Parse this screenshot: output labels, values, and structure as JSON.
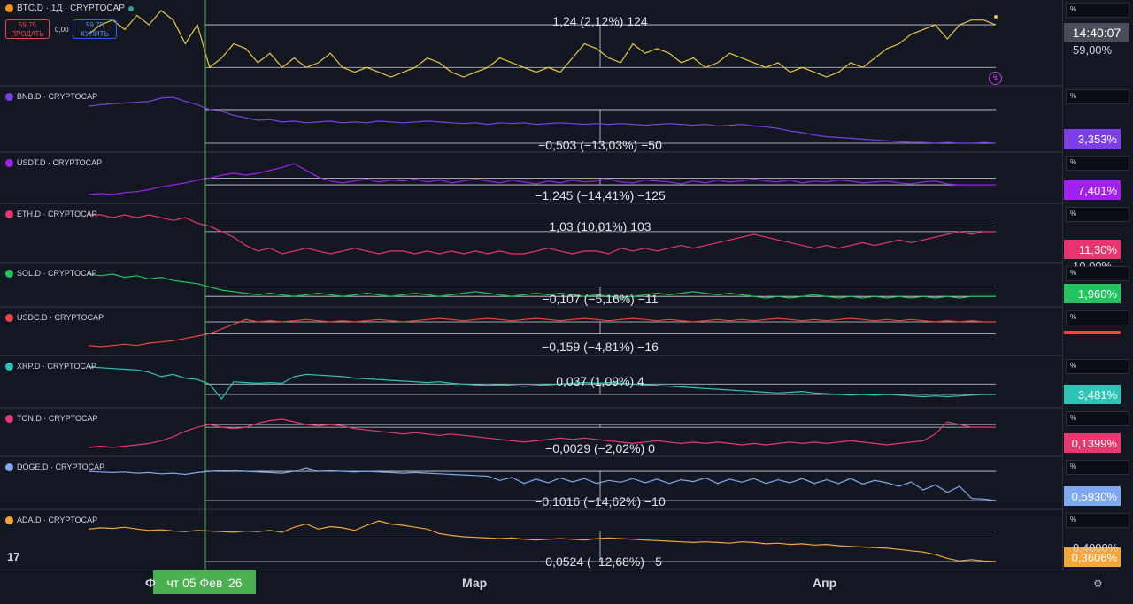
{
  "header": {
    "symbol": "BTC.D · 1Д · CRYPTOCAP",
    "sell_price": "59,75",
    "sell_label": "ПРОДАТЬ",
    "spread": "0,00",
    "buy_price": "59,75",
    "buy_label": "КУПИТЬ"
  },
  "cursor_date": "чт 05 Фев '26",
  "x_axis_labels": [
    "Ф",
    "Мар",
    "Апр"
  ],
  "time": "14:40:07",
  "pct_label": "%",
  "colors": {
    "bg": "#131722",
    "grid": "#2a2e39",
    "cursor": "#4caf50"
  },
  "chart_data": [
    {
      "type": "line",
      "symbol": "BTC.D · 1Д · CRYPTOCAP",
      "icon": "bitcoin-icon",
      "color": "#e8c547",
      "measure": "1,24 (2,12%) 124",
      "last_value": "59,00%",
      "values": [
        58.8,
        59.0,
        59.1,
        58.9,
        59.2,
        59.0,
        59.3,
        59.1,
        58.6,
        59.0,
        58.1,
        58.3,
        58.6,
        58.5,
        58.2,
        58.4,
        58.1,
        58.3,
        58.1,
        58.2,
        58.4,
        58.1,
        58.0,
        58.1,
        58.0,
        57.9,
        58.0,
        58.1,
        58.3,
        58.2,
        58.0,
        57.9,
        58.0,
        58.1,
        58.3,
        58.2,
        58.1,
        58.0,
        58.1,
        58.0,
        58.3,
        58.6,
        58.5,
        58.3,
        58.2,
        58.6,
        58.4,
        58.5,
        58.4,
        58.2,
        58.3,
        58.1,
        58.2,
        58.4,
        58.3,
        58.2,
        58.1,
        58.2,
        58.0,
        58.1,
        58.0,
        57.9,
        58.0,
        58.2,
        58.1,
        58.3,
        58.5,
        58.6,
        58.8,
        58.9,
        59.0,
        58.7,
        59.0,
        59.1,
        59.1,
        59.0
      ]
    },
    {
      "type": "line",
      "symbol": "BNB.D · CRYPTOCAP",
      "icon": "bnb-icon",
      "color": "#7b3fe4",
      "measure": "−0,503 (−13,03%) −50",
      "last_value": "3,353%",
      "values": [
        3.8,
        3.82,
        3.83,
        3.84,
        3.85,
        3.86,
        3.9,
        3.91,
        3.86,
        3.82,
        3.76,
        3.74,
        3.69,
        3.66,
        3.63,
        3.64,
        3.61,
        3.62,
        3.6,
        3.61,
        3.62,
        3.6,
        3.61,
        3.6,
        3.62,
        3.61,
        3.6,
        3.61,
        3.62,
        3.61,
        3.6,
        3.59,
        3.6,
        3.58,
        3.6,
        3.59,
        3.6,
        3.58,
        3.59,
        3.6,
        3.59,
        3.58,
        3.59,
        3.58,
        3.59,
        3.58,
        3.57,
        3.58,
        3.59,
        3.58,
        3.57,
        3.58,
        3.56,
        3.57,
        3.58,
        3.56,
        3.55,
        3.53,
        3.5,
        3.48,
        3.45,
        3.43,
        3.42,
        3.41,
        3.4,
        3.39,
        3.38,
        3.37,
        3.36,
        3.36,
        3.35,
        3.36,
        3.35,
        3.35,
        3.36,
        3.35
      ]
    },
    {
      "type": "line",
      "symbol": "USDT.D · CRYPTOCAP",
      "icon": "tether-icon",
      "color": "#a020f0",
      "measure": "−1,245 (−14,41%) −125",
      "last_value": "7,401%",
      "values": [
        7.3,
        7.31,
        7.3,
        7.32,
        7.33,
        7.35,
        7.38,
        7.4,
        7.42,
        7.45,
        7.47,
        7.5,
        7.52,
        7.5,
        7.52,
        7.55,
        7.58,
        7.62,
        7.55,
        7.48,
        7.44,
        7.42,
        7.44,
        7.46,
        7.43,
        7.45,
        7.44,
        7.46,
        7.43,
        7.45,
        7.42,
        7.44,
        7.46,
        7.44,
        7.42,
        7.45,
        7.43,
        7.41,
        7.44,
        7.42,
        7.45,
        7.43,
        7.44,
        7.46,
        7.43,
        7.42,
        7.45,
        7.44,
        7.43,
        7.41,
        7.44,
        7.42,
        7.45,
        7.43,
        7.44,
        7.46,
        7.44,
        7.43,
        7.45,
        7.42,
        7.44,
        7.43,
        7.45,
        7.44,
        7.42,
        7.43,
        7.44,
        7.42,
        7.41,
        7.43,
        7.44,
        7.41,
        7.4,
        7.4,
        7.4,
        7.4
      ]
    },
    {
      "type": "line",
      "symbol": "ETH.D · CRYPTOCAP",
      "icon": "ethereum-icon",
      "color": "#e8356e",
      "measure": "1,03 (10,01%) 103",
      "last_value": "11,30%",
      "extra_value": "10,00%",
      "values": [
        11.6,
        11.6,
        11.55,
        11.6,
        11.55,
        11.6,
        11.55,
        11.5,
        11.55,
        11.45,
        11.4,
        11.3,
        11.2,
        11.05,
        10.95,
        11.0,
        10.9,
        10.95,
        11.0,
        10.95,
        10.9,
        10.95,
        11.0,
        10.95,
        10.9,
        10.95,
        10.95,
        10.9,
        10.95,
        10.9,
        10.95,
        10.9,
        10.95,
        10.9,
        10.95,
        10.9,
        10.9,
        10.95,
        11.0,
        10.95,
        10.9,
        10.95,
        10.95,
        10.9,
        11.0,
        10.95,
        11.0,
        10.95,
        11.0,
        11.05,
        11.0,
        11.05,
        11.1,
        11.15,
        11.2,
        11.25,
        11.2,
        11.15,
        11.1,
        11.05,
        11.0,
        11.05,
        11.0,
        11.05,
        11.1,
        11.05,
        11.1,
        11.15,
        11.1,
        11.15,
        11.2,
        11.25,
        11.3,
        11.25,
        11.3,
        11.3
      ]
    },
    {
      "type": "line",
      "symbol": "SOL.D · CRYPTOCAP",
      "icon": "solana-icon",
      "color": "#22c55e",
      "measure": "−0,107 (−5,16%) −11",
      "last_value": "1,960%",
      "values": [
        2.1,
        2.09,
        2.1,
        2.08,
        2.09,
        2.07,
        2.08,
        2.06,
        2.05,
        2.04,
        2.02,
        2.0,
        1.99,
        1.98,
        1.97,
        1.98,
        1.97,
        1.96,
        1.97,
        1.98,
        1.97,
        1.96,
        1.97,
        1.98,
        1.97,
        1.96,
        1.97,
        1.98,
        1.97,
        1.96,
        1.97,
        1.98,
        1.99,
        1.98,
        1.97,
        1.96,
        1.97,
        1.98,
        1.97,
        1.98,
        1.97,
        1.96,
        1.97,
        1.96,
        1.95,
        1.96,
        1.97,
        1.98,
        1.97,
        1.98,
        1.99,
        1.98,
        1.97,
        1.98,
        1.97,
        1.96,
        1.95,
        1.96,
        1.95,
        1.96,
        1.97,
        1.96,
        1.95,
        1.96,
        1.95,
        1.96,
        1.95,
        1.96,
        1.95,
        1.96,
        1.95,
        1.96,
        1.95,
        1.96,
        1.96,
        1.96
      ]
    },
    {
      "type": "line",
      "symbol": "USDC.D · CRYPTOCAP",
      "icon": "usdc-icon",
      "color": "#ef4444",
      "measure": "−0,159 (−4,81%) −16",
      "last_value": "",
      "values": [
        3.1,
        3.09,
        3.1,
        3.11,
        3.1,
        3.12,
        3.13,
        3.14,
        3.16,
        3.18,
        3.2,
        3.24,
        3.28,
        3.32,
        3.3,
        3.31,
        3.3,
        3.31,
        3.32,
        3.31,
        3.3,
        3.31,
        3.3,
        3.31,
        3.32,
        3.31,
        3.3,
        3.31,
        3.32,
        3.33,
        3.32,
        3.31,
        3.32,
        3.33,
        3.32,
        3.31,
        3.32,
        3.33,
        3.32,
        3.31,
        3.32,
        3.33,
        3.32,
        3.31,
        3.32,
        3.33,
        3.32,
        3.31,
        3.32,
        3.31,
        3.3,
        3.31,
        3.32,
        3.31,
        3.32,
        3.31,
        3.32,
        3.33,
        3.32,
        3.31,
        3.32,
        3.31,
        3.32,
        3.33,
        3.32,
        3.31,
        3.32,
        3.31,
        3.32,
        3.31,
        3.3,
        3.31,
        3.3,
        3.31,
        3.3,
        3.3
      ]
    },
    {
      "type": "line",
      "symbol": "XRP.D · CRYPTOCAP",
      "icon": "xrp-icon",
      "color": "#2ec4b6",
      "measure": "0,037 (1,09%) 4",
      "last_value": "3,481%",
      "values": [
        3.85,
        3.84,
        3.83,
        3.82,
        3.81,
        3.78,
        3.72,
        3.75,
        3.7,
        3.68,
        3.62,
        3.42,
        3.65,
        3.64,
        3.63,
        3.64,
        3.63,
        3.72,
        3.75,
        3.74,
        3.73,
        3.72,
        3.7,
        3.69,
        3.68,
        3.67,
        3.66,
        3.65,
        3.64,
        3.65,
        3.63,
        3.62,
        3.61,
        3.6,
        3.61,
        3.6,
        3.59,
        3.6,
        3.61,
        3.62,
        3.63,
        3.64,
        3.63,
        3.64,
        3.63,
        3.62,
        3.61,
        3.6,
        3.59,
        3.58,
        3.57,
        3.56,
        3.55,
        3.54,
        3.53,
        3.52,
        3.51,
        3.5,
        3.51,
        3.52,
        3.5,
        3.49,
        3.48,
        3.47,
        3.48,
        3.47,
        3.48,
        3.47,
        3.46,
        3.45,
        3.46,
        3.45,
        3.46,
        3.47,
        3.48,
        3.48
      ]
    },
    {
      "type": "line",
      "symbol": "TON.D · CRYPTOCAP",
      "icon": "ton-icon",
      "color": "#e5396f",
      "measure": "−0,0029 (−2,02%) 0",
      "last_value": "0,1399%",
      "values": [
        0.125,
        0.126,
        0.125,
        0.126,
        0.127,
        0.128,
        0.13,
        0.133,
        0.137,
        0.14,
        0.142,
        0.14,
        0.139,
        0.14,
        0.143,
        0.145,
        0.146,
        0.144,
        0.142,
        0.141,
        0.142,
        0.141,
        0.139,
        0.138,
        0.137,
        0.136,
        0.135,
        0.136,
        0.135,
        0.134,
        0.135,
        0.134,
        0.133,
        0.132,
        0.131,
        0.13,
        0.129,
        0.13,
        0.131,
        0.132,
        0.131,
        0.132,
        0.131,
        0.13,
        0.129,
        0.128,
        0.129,
        0.13,
        0.129,
        0.128,
        0.129,
        0.128,
        0.129,
        0.128,
        0.127,
        0.128,
        0.127,
        0.128,
        0.129,
        0.128,
        0.129,
        0.128,
        0.129,
        0.13,
        0.129,
        0.128,
        0.127,
        0.128,
        0.129,
        0.13,
        0.135,
        0.144,
        0.142,
        0.14,
        0.14,
        0.14
      ]
    },
    {
      "type": "line",
      "symbol": "DOGE.D · CRYPTOCAP",
      "icon": "dogecoin-icon",
      "color": "#7ea8f0",
      "measure": "−0,1016 (−14,62%) −10",
      "last_value": "0,5930%",
      "values": [
        0.69,
        0.688,
        0.686,
        0.688,
        0.684,
        0.686,
        0.682,
        0.684,
        0.68,
        0.686,
        0.69,
        0.692,
        0.694,
        0.69,
        0.688,
        0.686,
        0.684,
        0.69,
        0.702,
        0.69,
        0.692,
        0.69,
        0.688,
        0.69,
        0.688,
        0.686,
        0.684,
        0.686,
        0.684,
        0.682,
        0.68,
        0.678,
        0.676,
        0.674,
        0.66,
        0.67,
        0.65,
        0.664,
        0.652,
        0.668,
        0.655,
        0.666,
        0.65,
        0.66,
        0.654,
        0.666,
        0.652,
        0.664,
        0.65,
        0.662,
        0.656,
        0.668,
        0.65,
        0.664,
        0.654,
        0.666,
        0.65,
        0.662,
        0.652,
        0.666,
        0.65,
        0.662,
        0.65,
        0.666,
        0.648,
        0.66,
        0.652,
        0.64,
        0.655,
        0.628,
        0.645,
        0.62,
        0.64,
        0.6,
        0.598,
        0.593
      ]
    },
    {
      "type": "line",
      "symbol": "ADA.D · CRYPTOCAP",
      "icon": "cardano-icon",
      "color": "#f5a63a",
      "measure": "−0,0524 (−12,68%) −5",
      "last_value": "0,3606%",
      "extra_value": "0,4000%",
      "values": [
        0.412,
        0.414,
        0.413,
        0.415,
        0.412,
        0.41,
        0.411,
        0.409,
        0.408,
        0.41,
        0.409,
        0.408,
        0.407,
        0.409,
        0.408,
        0.41,
        0.407,
        0.415,
        0.42,
        0.412,
        0.416,
        0.414,
        0.41,
        0.418,
        0.425,
        0.42,
        0.418,
        0.415,
        0.412,
        0.405,
        0.402,
        0.4,
        0.399,
        0.398,
        0.397,
        0.398,
        0.396,
        0.395,
        0.396,
        0.397,
        0.396,
        0.395,
        0.397,
        0.398,
        0.397,
        0.396,
        0.395,
        0.394,
        0.393,
        0.392,
        0.391,
        0.392,
        0.391,
        0.39,
        0.392,
        0.391,
        0.389,
        0.39,
        0.388,
        0.389,
        0.387,
        0.388,
        0.386,
        0.385,
        0.384,
        0.383,
        0.382,
        0.38,
        0.378,
        0.376,
        0.372,
        0.366,
        0.362,
        0.364,
        0.362,
        0.361
      ]
    }
  ]
}
